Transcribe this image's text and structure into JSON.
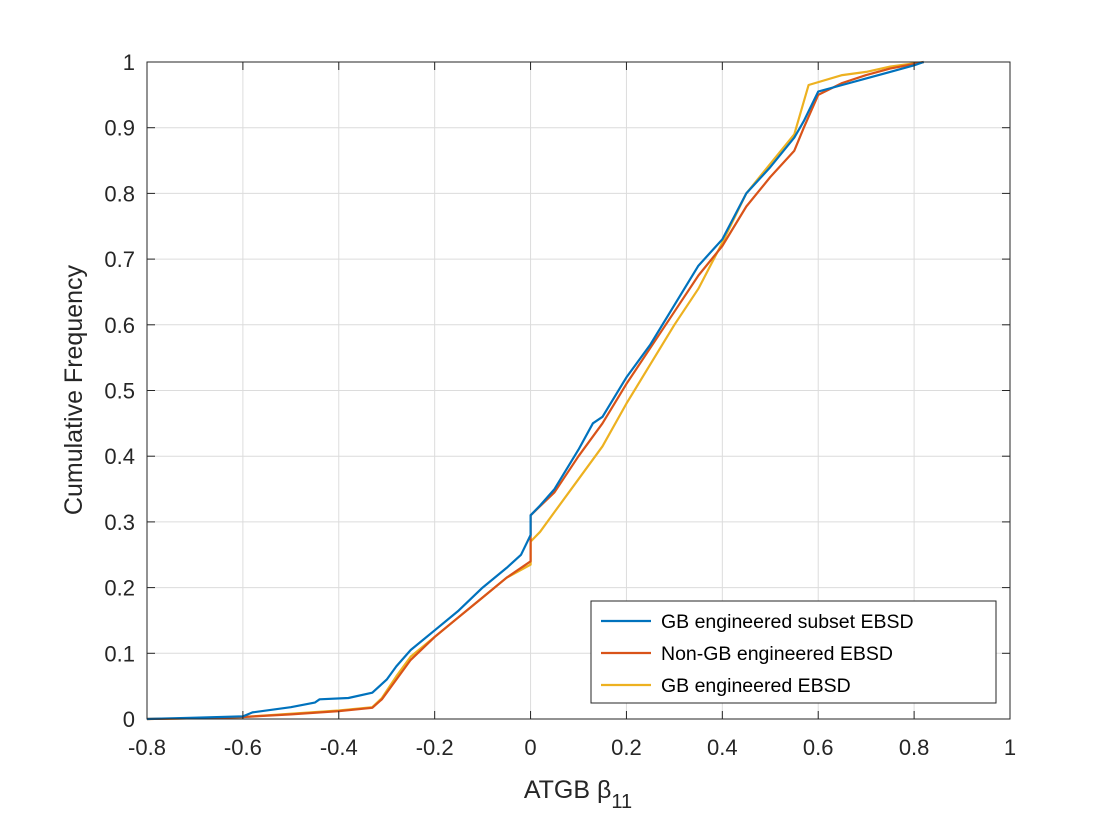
{
  "chart_data": {
    "type": "line",
    "xlabel": "ATGB β11",
    "xlabel_parts": {
      "main": "ATGB β",
      "subscript": "11"
    },
    "ylabel": "Cumulative Frequency",
    "xlim": [
      -0.8,
      1
    ],
    "ylim": [
      0,
      1
    ],
    "xticks": [
      -0.8,
      -0.6,
      -0.4,
      -0.2,
      0,
      0.2,
      0.4,
      0.6,
      0.8,
      1
    ],
    "xtick_labels": [
      "-0.8",
      "-0.6",
      "-0.4",
      "-0.2",
      "0",
      "0.2",
      "0.4",
      "0.6",
      "0.8",
      "1"
    ],
    "yticks": [
      0,
      0.1,
      0.2,
      0.3,
      0.4,
      0.5,
      0.6,
      0.7,
      0.8,
      0.9,
      1
    ],
    "ytick_labels": [
      "0",
      "0.1",
      "0.2",
      "0.3",
      "0.4",
      "0.5",
      "0.6",
      "0.7",
      "0.8",
      "0.9",
      "1"
    ],
    "grid": true,
    "legend_position": "bottom-right",
    "series": [
      {
        "name": "GB engineered subset EBSD",
        "color": "#0072BD",
        "points": [
          [
            -0.8,
            0
          ],
          [
            -0.7,
            0.002
          ],
          [
            -0.6,
            0.004
          ],
          [
            -0.58,
            0.01
          ],
          [
            -0.5,
            0.018
          ],
          [
            -0.45,
            0.025
          ],
          [
            -0.44,
            0.03
          ],
          [
            -0.38,
            0.032
          ],
          [
            -0.33,
            0.04
          ],
          [
            -0.3,
            0.06
          ],
          [
            -0.28,
            0.08
          ],
          [
            -0.25,
            0.105
          ],
          [
            -0.2,
            0.135
          ],
          [
            -0.15,
            0.165
          ],
          [
            -0.1,
            0.2
          ],
          [
            -0.05,
            0.23
          ],
          [
            -0.02,
            0.25
          ],
          [
            0,
            0.28
          ],
          [
            0,
            0.31
          ],
          [
            0.02,
            0.325
          ],
          [
            0.05,
            0.35
          ],
          [
            0.1,
            0.41
          ],
          [
            0.13,
            0.45
          ],
          [
            0.15,
            0.46
          ],
          [
            0.2,
            0.52
          ],
          [
            0.25,
            0.57
          ],
          [
            0.3,
            0.63
          ],
          [
            0.35,
            0.69
          ],
          [
            0.4,
            0.73
          ],
          [
            0.45,
            0.8
          ],
          [
            0.5,
            0.84
          ],
          [
            0.55,
            0.885
          ],
          [
            0.57,
            0.91
          ],
          [
            0.6,
            0.955
          ],
          [
            0.65,
            0.965
          ],
          [
            0.7,
            0.975
          ],
          [
            0.75,
            0.985
          ],
          [
            0.8,
            0.995
          ],
          [
            0.82,
            1
          ]
        ]
      },
      {
        "name": "Non-GB engineered EBSD",
        "color": "#D95319",
        "points": [
          [
            -0.8,
            0
          ],
          [
            -0.7,
            0.001
          ],
          [
            -0.6,
            0.003
          ],
          [
            -0.5,
            0.007
          ],
          [
            -0.4,
            0.012
          ],
          [
            -0.33,
            0.017
          ],
          [
            -0.31,
            0.03
          ],
          [
            -0.28,
            0.06
          ],
          [
            -0.25,
            0.09
          ],
          [
            -0.2,
            0.125
          ],
          [
            -0.15,
            0.155
          ],
          [
            -0.1,
            0.185
          ],
          [
            -0.05,
            0.215
          ],
          [
            0,
            0.24
          ],
          [
            0,
            0.31
          ],
          [
            0.05,
            0.345
          ],
          [
            0.1,
            0.4
          ],
          [
            0.15,
            0.45
          ],
          [
            0.2,
            0.51
          ],
          [
            0.25,
            0.565
          ],
          [
            0.3,
            0.62
          ],
          [
            0.35,
            0.675
          ],
          [
            0.4,
            0.72
          ],
          [
            0.45,
            0.78
          ],
          [
            0.5,
            0.825
          ],
          [
            0.55,
            0.865
          ],
          [
            0.57,
            0.9
          ],
          [
            0.6,
            0.95
          ],
          [
            0.65,
            0.968
          ],
          [
            0.7,
            0.98
          ],
          [
            0.75,
            0.99
          ],
          [
            0.8,
            0.997
          ],
          [
            0.82,
            1
          ]
        ]
      },
      {
        "name": "GB engineered EBSD",
        "color": "#EDB120",
        "points": [
          [
            -0.8,
            0
          ],
          [
            -0.7,
            0.001
          ],
          [
            -0.6,
            0.003
          ],
          [
            -0.5,
            0.008
          ],
          [
            -0.4,
            0.013
          ],
          [
            -0.33,
            0.018
          ],
          [
            -0.31,
            0.032
          ],
          [
            -0.28,
            0.065
          ],
          [
            -0.25,
            0.095
          ],
          [
            -0.2,
            0.125
          ],
          [
            -0.15,
            0.155
          ],
          [
            -0.1,
            0.185
          ],
          [
            -0.05,
            0.215
          ],
          [
            0,
            0.235
          ],
          [
            0,
            0.27
          ],
          [
            0.02,
            0.285
          ],
          [
            0.05,
            0.315
          ],
          [
            0.1,
            0.365
          ],
          [
            0.15,
            0.415
          ],
          [
            0.2,
            0.48
          ],
          [
            0.25,
            0.54
          ],
          [
            0.3,
            0.6
          ],
          [
            0.35,
            0.655
          ],
          [
            0.4,
            0.725
          ],
          [
            0.45,
            0.8
          ],
          [
            0.5,
            0.845
          ],
          [
            0.55,
            0.89
          ],
          [
            0.58,
            0.965
          ],
          [
            0.65,
            0.98
          ],
          [
            0.7,
            0.985
          ],
          [
            0.75,
            0.993
          ],
          [
            0.8,
            0.998
          ],
          [
            0.82,
            1
          ]
        ]
      }
    ]
  }
}
